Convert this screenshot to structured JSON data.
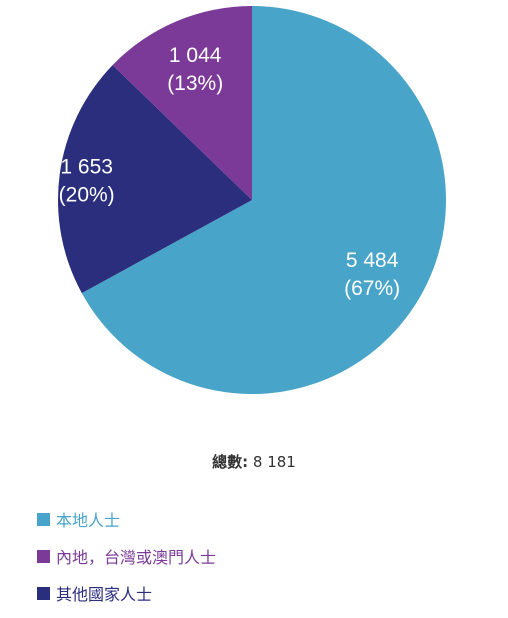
{
  "chart_data": {
    "type": "pie",
    "slices": [
      {
        "label": "本地人士",
        "value": 5484,
        "value_text": "5 484",
        "percent_text": "(67%)",
        "color": "#48a4c8"
      },
      {
        "label": "其他國家人士",
        "value": 1653,
        "value_text": "1 653",
        "percent_text": "(20%)",
        "color": "#2b2d7d"
      },
      {
        "label": "內地，台灣或澳門人士",
        "value": 1044,
        "value_text": "1 044",
        "percent_text": "(13%)",
        "color": "#7b3a98"
      }
    ],
    "total": 8181,
    "start_angle": "top",
    "direction": "clockwise",
    "legend_position": "bottom-left"
  },
  "summary": {
    "label": "總數:",
    "value": "8 181"
  },
  "legend": [
    {
      "label": "本地人士",
      "color": "#48a4c8"
    },
    {
      "label": "內地，台灣或澳門人士",
      "color": "#7b3a98"
    },
    {
      "label": "其他國家人士",
      "color": "#2b2d7d"
    }
  ]
}
